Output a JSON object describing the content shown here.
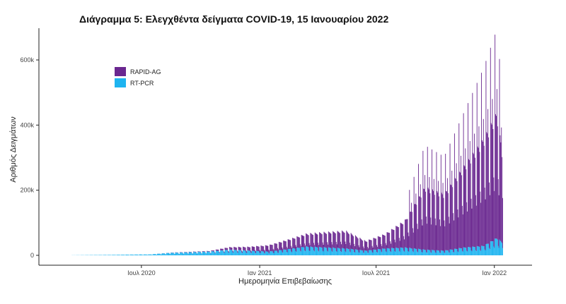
{
  "chart_data": {
    "type": "bar",
    "title": "Διάγραμμα 5: Ελεγχθέντα δείγματα COVID-19, 15 Ιανουαρίου 2022",
    "xlabel": "Ημερομηνία Επιβεβαίωσης",
    "ylabel": "Αριθμός Δειγμάτων",
    "ylim": [
      0,
      690000
    ],
    "y_ticks": [
      {
        "value": 0,
        "label": "0"
      },
      {
        "value": 200000,
        "label": "200k"
      },
      {
        "value": 400000,
        "label": "400k"
      },
      {
        "value": 600000,
        "label": "600k"
      }
    ],
    "x_range": [
      "2020-03-01",
      "2022-01-31"
    ],
    "x_ticks": [
      {
        "date": "2020-07-01",
        "label": "Ιουλ 2020"
      },
      {
        "date": "2021-01-01",
        "label": "Ιαν 2021"
      },
      {
        "date": "2021-07-01",
        "label": "Ιουλ 2021"
      },
      {
        "date": "2022-01-01",
        "label": "Ιαν 2022"
      }
    ],
    "stacked": true,
    "grid": false,
    "legend_position": "top-left",
    "series": [
      {
        "name": "RT-PCR",
        "color": "#1EB4F0",
        "points": [
          [
            "2020-03-15",
            300
          ],
          [
            "2020-04-15",
            1000
          ],
          [
            "2020-05-15",
            1500
          ],
          [
            "2020-06-15",
            2500
          ],
          [
            "2020-07-15",
            3000
          ],
          [
            "2020-08-15",
            8000
          ],
          [
            "2020-09-15",
            10000
          ],
          [
            "2020-10-15",
            12000
          ],
          [
            "2020-11-15",
            18000
          ],
          [
            "2020-12-15",
            15000
          ],
          [
            "2021-01-15",
            12000
          ],
          [
            "2021-02-15",
            20000
          ],
          [
            "2021-03-15",
            28000
          ],
          [
            "2021-04-15",
            25000
          ],
          [
            "2021-05-15",
            22000
          ],
          [
            "2021-06-15",
            15000
          ],
          [
            "2021-07-15",
            22000
          ],
          [
            "2021-08-15",
            25000
          ],
          [
            "2021-09-15",
            18000
          ],
          [
            "2021-10-15",
            15000
          ],
          [
            "2021-11-15",
            25000
          ],
          [
            "2021-12-15",
            30000
          ],
          [
            "2022-01-05",
            55000
          ],
          [
            "2022-01-14",
            40000
          ]
        ]
      },
      {
        "name": "RAPID-AG",
        "color": "#6A2790",
        "points": [
          [
            "2020-03-15",
            0
          ],
          [
            "2020-07-15",
            0
          ],
          [
            "2020-10-15",
            2000
          ],
          [
            "2020-11-15",
            8000
          ],
          [
            "2020-12-15",
            12000
          ],
          [
            "2021-01-15",
            20000
          ],
          [
            "2021-02-15",
            30000
          ],
          [
            "2021-03-15",
            40000
          ],
          [
            "2021-04-15",
            48000
          ],
          [
            "2021-05-15",
            55000
          ],
          [
            "2021-06-15",
            30000
          ],
          [
            "2021-07-15",
            45000
          ],
          [
            "2021-08-15",
            85000
          ],
          [
            "2021-09-15",
            200000
          ],
          [
            "2021-10-15",
            180000
          ],
          [
            "2021-11-15",
            260000
          ],
          [
            "2021-12-15",
            340000
          ],
          [
            "2022-01-05",
            400000
          ],
          [
            "2022-01-14",
            280000
          ]
        ]
      }
    ]
  }
}
